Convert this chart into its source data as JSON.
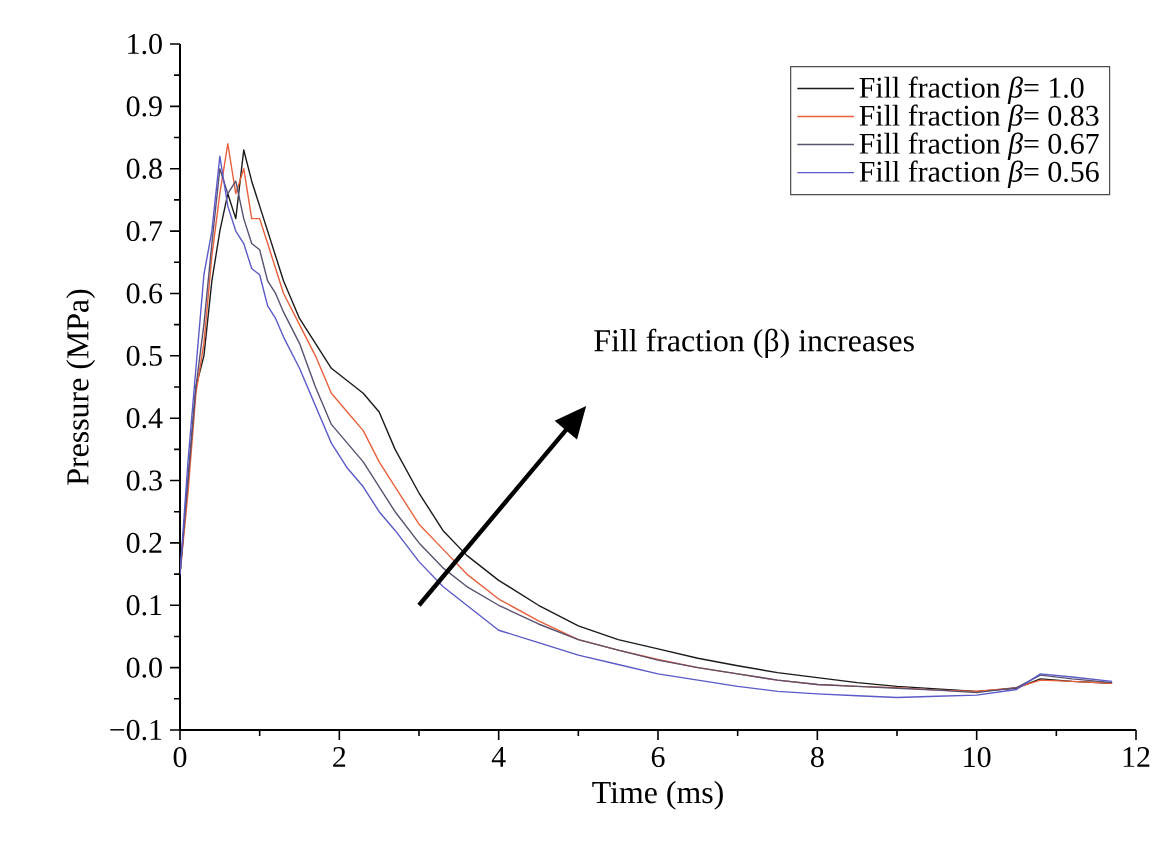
{
  "chart_data": {
    "type": "line",
    "xlabel": "Time (ms)",
    "ylabel": "Pressure (MPa)",
    "annotations": [
      "Fill fraction (β) increases"
    ],
    "xlim": [
      0,
      12
    ],
    "xticks": [
      0,
      2,
      4,
      6,
      8,
      10,
      12
    ],
    "ylim": [
      -0.1,
      1.0
    ],
    "yticks": [
      {
        "value": -0.1,
        "label": "−0.1"
      },
      {
        "value": 0.0,
        "label": "0.0"
      },
      {
        "value": 0.1,
        "label": "0.1"
      },
      {
        "value": 0.2,
        "label": "0.2"
      },
      {
        "value": 0.3,
        "label": "0.3"
      },
      {
        "value": 0.4,
        "label": "0.4"
      },
      {
        "value": 0.5,
        "label": "0.5"
      },
      {
        "value": 0.6,
        "label": "0.6"
      },
      {
        "value": 0.7,
        "label": "0.7"
      },
      {
        "value": 0.8,
        "label": "0.8"
      },
      {
        "value": 0.9,
        "label": "0.9"
      },
      {
        "value": 1.0,
        "label": "1.0"
      }
    ],
    "legend": "top right",
    "grid": false,
    "marker": "none",
    "line_style": "solid",
    "x": [
      0,
      0.1,
      0.2,
      0.3,
      0.4,
      0.5,
      0.6,
      0.7,
      0.8,
      0.9,
      1.0,
      1.1,
      1.2,
      1.3,
      1.5,
      1.7,
      1.9,
      2.1,
      2.3,
      2.5,
      2.7,
      3.0,
      3.3,
      3.6,
      4.0,
      4.5,
      5.0,
      5.5,
      6.0,
      6.5,
      7.0,
      7.5,
      8.0,
      8.5,
      9.0,
      9.5,
      10.0,
      10.5,
      10.8,
      11.2,
      11.7
    ],
    "series": [
      {
        "name": "Fill fraction *β*= 1.0",
        "color": "#1a1a1a",
        "values": [
          0.15,
          0.3,
          0.45,
          0.5,
          0.62,
          0.7,
          0.76,
          0.72,
          0.83,
          0.78,
          0.74,
          0.7,
          0.66,
          0.62,
          0.56,
          0.52,
          0.48,
          0.46,
          0.44,
          0.41,
          0.35,
          0.28,
          0.22,
          0.18,
          0.14,
          0.1,
          0.067,
          0.045,
          0.03,
          0.015,
          0.003,
          -0.008,
          -0.016,
          -0.024,
          -0.03,
          -0.034,
          -0.038,
          -0.033,
          -0.018,
          -0.022,
          -0.025
        ]
      },
      {
        "name": "Fill fraction *β*= 0.83",
        "color": "#e8603c",
        "values": [
          0.15,
          0.28,
          0.44,
          0.52,
          0.66,
          0.76,
          0.84,
          0.76,
          0.8,
          0.72,
          0.72,
          0.68,
          0.64,
          0.6,
          0.55,
          0.5,
          0.44,
          0.41,
          0.38,
          0.33,
          0.29,
          0.23,
          0.19,
          0.15,
          0.11,
          0.075,
          0.045,
          0.028,
          0.013,
          0.0,
          -0.01,
          -0.02,
          -0.027,
          -0.03,
          -0.032,
          -0.036,
          -0.038,
          -0.032,
          -0.02,
          -0.022,
          -0.025
        ]
      },
      {
        "name": "Fill fraction *β*= 0.67",
        "color": "#5a5070",
        "values": [
          0.15,
          0.3,
          0.45,
          0.55,
          0.68,
          0.8,
          0.76,
          0.78,
          0.72,
          0.68,
          0.67,
          0.62,
          0.6,
          0.57,
          0.52,
          0.45,
          0.39,
          0.36,
          0.33,
          0.29,
          0.25,
          0.2,
          0.16,
          0.13,
          0.1,
          0.07,
          0.045,
          0.028,
          0.012,
          0.0,
          -0.01,
          -0.02,
          -0.027,
          -0.03,
          -0.033,
          -0.036,
          -0.04,
          -0.032,
          -0.012,
          -0.018,
          -0.024
        ]
      },
      {
        "name": "Fill fraction *β*= 0.56",
        "color": "#5a5ac8",
        "values": [
          0.15,
          0.33,
          0.48,
          0.63,
          0.7,
          0.82,
          0.74,
          0.7,
          0.68,
          0.64,
          0.63,
          0.58,
          0.56,
          0.53,
          0.48,
          0.42,
          0.36,
          0.32,
          0.29,
          0.25,
          0.22,
          0.17,
          0.13,
          0.1,
          0.06,
          0.04,
          0.02,
          0.005,
          -0.01,
          -0.02,
          -0.03,
          -0.038,
          -0.042,
          -0.045,
          -0.048,
          -0.046,
          -0.044,
          -0.035,
          -0.01,
          -0.015,
          -0.022
        ]
      }
    ]
  }
}
